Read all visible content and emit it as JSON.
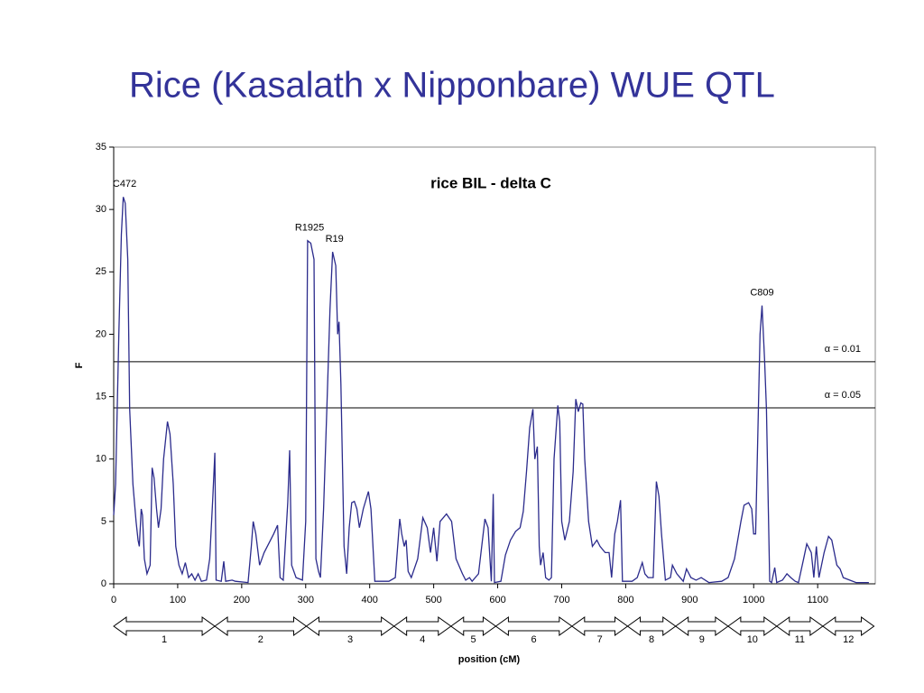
{
  "slide_title": "Rice (Kasalath x Nipponbare) WUE QTL",
  "chart_data": {
    "type": "line",
    "title": "rice BIL - delta C",
    "xlabel": "position (cM)",
    "ylabel": "F",
    "xlim": [
      0,
      1190
    ],
    "ylim": [
      0,
      35
    ],
    "xticks": [
      0,
      100,
      200,
      300,
      400,
      500,
      600,
      700,
      800,
      900,
      1000,
      1100
    ],
    "yticks": [
      0,
      5,
      10,
      15,
      20,
      25,
      30,
      35
    ],
    "series": [
      {
        "color": "#2b2b8c",
        "x": [
          0,
          3,
          8,
          12,
          15,
          18,
          22,
          25,
          30,
          35,
          38,
          40,
          43,
          45,
          48,
          52,
          57,
          60,
          63,
          67,
          70,
          74,
          78,
          84,
          88,
          93,
          97,
          102,
          107,
          112,
          117,
          122,
          127,
          132,
          137,
          145,
          150,
          155,
          158,
          160,
          168,
          172,
          175,
          185,
          190,
          210,
          215,
          218,
          222,
          228,
          235,
          245,
          250,
          256,
          260,
          265,
          272,
          275,
          278,
          285,
          295,
          300,
          303,
          308,
          313,
          316,
          320,
          323,
          328,
          333,
          338,
          342,
          347,
          350,
          352,
          355,
          360,
          364,
          368,
          372,
          376,
          380,
          384,
          390,
          398,
          402,
          408,
          430,
          440,
          447,
          450,
          454,
          457,
          460,
          465,
          475,
          483,
          490,
          495,
          500,
          505,
          510,
          520,
          528,
          535,
          545,
          550,
          556,
          560,
          570,
          580,
          585,
          590,
          593,
          595,
          605,
          612,
          620,
          628,
          635,
          640,
          645,
          650,
          655,
          658,
          662,
          665,
          667,
          671,
          675,
          680,
          684,
          688,
          694,
          697,
          700,
          705,
          712,
          718,
          722,
          726,
          730,
          733,
          736,
          742,
          748,
          755,
          760,
          768,
          774,
          778,
          783,
          787,
          792,
          795,
          810,
          818,
          826,
          830,
          835,
          843,
          848,
          852,
          856,
          862,
          870,
          873,
          880,
          890,
          895,
          902,
          910,
          918,
          930,
          950,
          960,
          970,
          980,
          985,
          992,
          997,
          1000,
          1003,
          1010,
          1013,
          1017,
          1020,
          1025,
          1028,
          1033,
          1036,
          1045,
          1052,
          1058,
          1065,
          1070,
          1078,
          1083,
          1090,
          1094,
          1098,
          1102,
          1110,
          1117,
          1122,
          1130,
          1135,
          1140,
          1150,
          1160,
          1180
        ],
        "values": [
          5.5,
          8,
          20,
          28,
          31,
          30.5,
          26,
          14,
          8,
          5,
          3.5,
          3,
          6,
          5.5,
          2,
          0.8,
          1.5,
          9.3,
          8.5,
          6,
          4.5,
          6,
          10,
          13,
          12,
          8,
          3,
          1.5,
          0.8,
          1.7,
          0.5,
          0.8,
          0.3,
          0.8,
          0.2,
          0.3,
          2,
          7,
          10.5,
          0.3,
          0.2,
          1.8,
          0.2,
          0.3,
          0.2,
          0.1,
          3,
          5,
          4,
          1.5,
          2.5,
          3.5,
          4,
          4.7,
          0.5,
          0.3,
          6.5,
          10.7,
          1.5,
          0.5,
          0.3,
          5,
          27.5,
          27.3,
          26,
          2,
          1,
          0.5,
          6,
          14,
          22,
          26.6,
          25.5,
          20,
          21,
          16,
          3,
          0.8,
          4.5,
          6.5,
          6.6,
          6,
          4.5,
          6,
          7.4,
          6,
          0.2,
          0.2,
          0.5,
          5.2,
          4,
          3,
          3.5,
          1,
          0.5,
          2,
          5.3,
          4.5,
          2.5,
          4.5,
          1.8,
          5,
          5.6,
          5,
          2,
          0.8,
          0.3,
          0.5,
          0.2,
          0.8,
          5.2,
          4.5,
          0.2,
          7.2,
          0.1,
          0.2,
          2.3,
          3.5,
          4.2,
          4.5,
          5.8,
          9,
          12.5,
          14,
          10,
          11,
          3,
          1.5,
          2.5,
          0.5,
          0.3,
          0.5,
          10,
          14.3,
          13,
          5,
          3.5,
          5,
          9,
          14.8,
          13.8,
          14.5,
          14.4,
          10,
          5,
          3,
          3.5,
          3,
          2.5,
          2.5,
          0.5,
          4,
          5,
          6.7,
          0.2,
          0.2,
          0.5,
          1.7,
          0.8,
          0.5,
          0.5,
          8.2,
          7,
          4,
          0.3,
          0.5,
          1.5,
          0.8,
          0.2,
          1.2,
          0.5,
          0.3,
          0.5,
          0.1,
          0.2,
          0.5,
          2,
          5,
          6.3,
          6.5,
          6,
          4,
          4,
          20,
          22.3,
          18,
          14,
          0.2,
          0.1,
          1.3,
          0.1,
          0.3,
          0.8,
          0.5,
          0.2,
          0.1,
          2,
          3.2,
          2.5,
          0.5,
          3,
          0.5,
          2.5,
          3.8,
          3.5,
          1.5,
          1.2,
          0.5,
          0.3,
          0.1,
          0.1
        ]
      }
    ],
    "thresholds": [
      {
        "label": "α = 0.01",
        "value": 17.8
      },
      {
        "label": "α = 0.05",
        "value": 14.1
      }
    ],
    "annotations": [
      {
        "text": "C472",
        "x": 17,
        "y": 31
      },
      {
        "text": "R1925",
        "x": 306,
        "y": 27.5
      },
      {
        "text": "R19",
        "x": 345,
        "y": 26.6
      },
      {
        "text": "C809",
        "x": 1013,
        "y": 22.3
      }
    ],
    "chromosomes": [
      {
        "label": "1",
        "start": 0,
        "end": 158
      },
      {
        "label": "2",
        "start": 158,
        "end": 301
      },
      {
        "label": "3",
        "start": 301,
        "end": 438
      },
      {
        "label": "4",
        "start": 438,
        "end": 527
      },
      {
        "label": "5",
        "start": 527,
        "end": 597
      },
      {
        "label": "6",
        "start": 597,
        "end": 716
      },
      {
        "label": "7",
        "start": 716,
        "end": 803
      },
      {
        "label": "8",
        "start": 803,
        "end": 878
      },
      {
        "label": "9",
        "start": 878,
        "end": 960
      },
      {
        "label": "10",
        "start": 960,
        "end": 1036
      },
      {
        "label": "11",
        "start": 1036,
        "end": 1108
      },
      {
        "label": "12",
        "start": 1108,
        "end": 1188
      }
    ]
  }
}
